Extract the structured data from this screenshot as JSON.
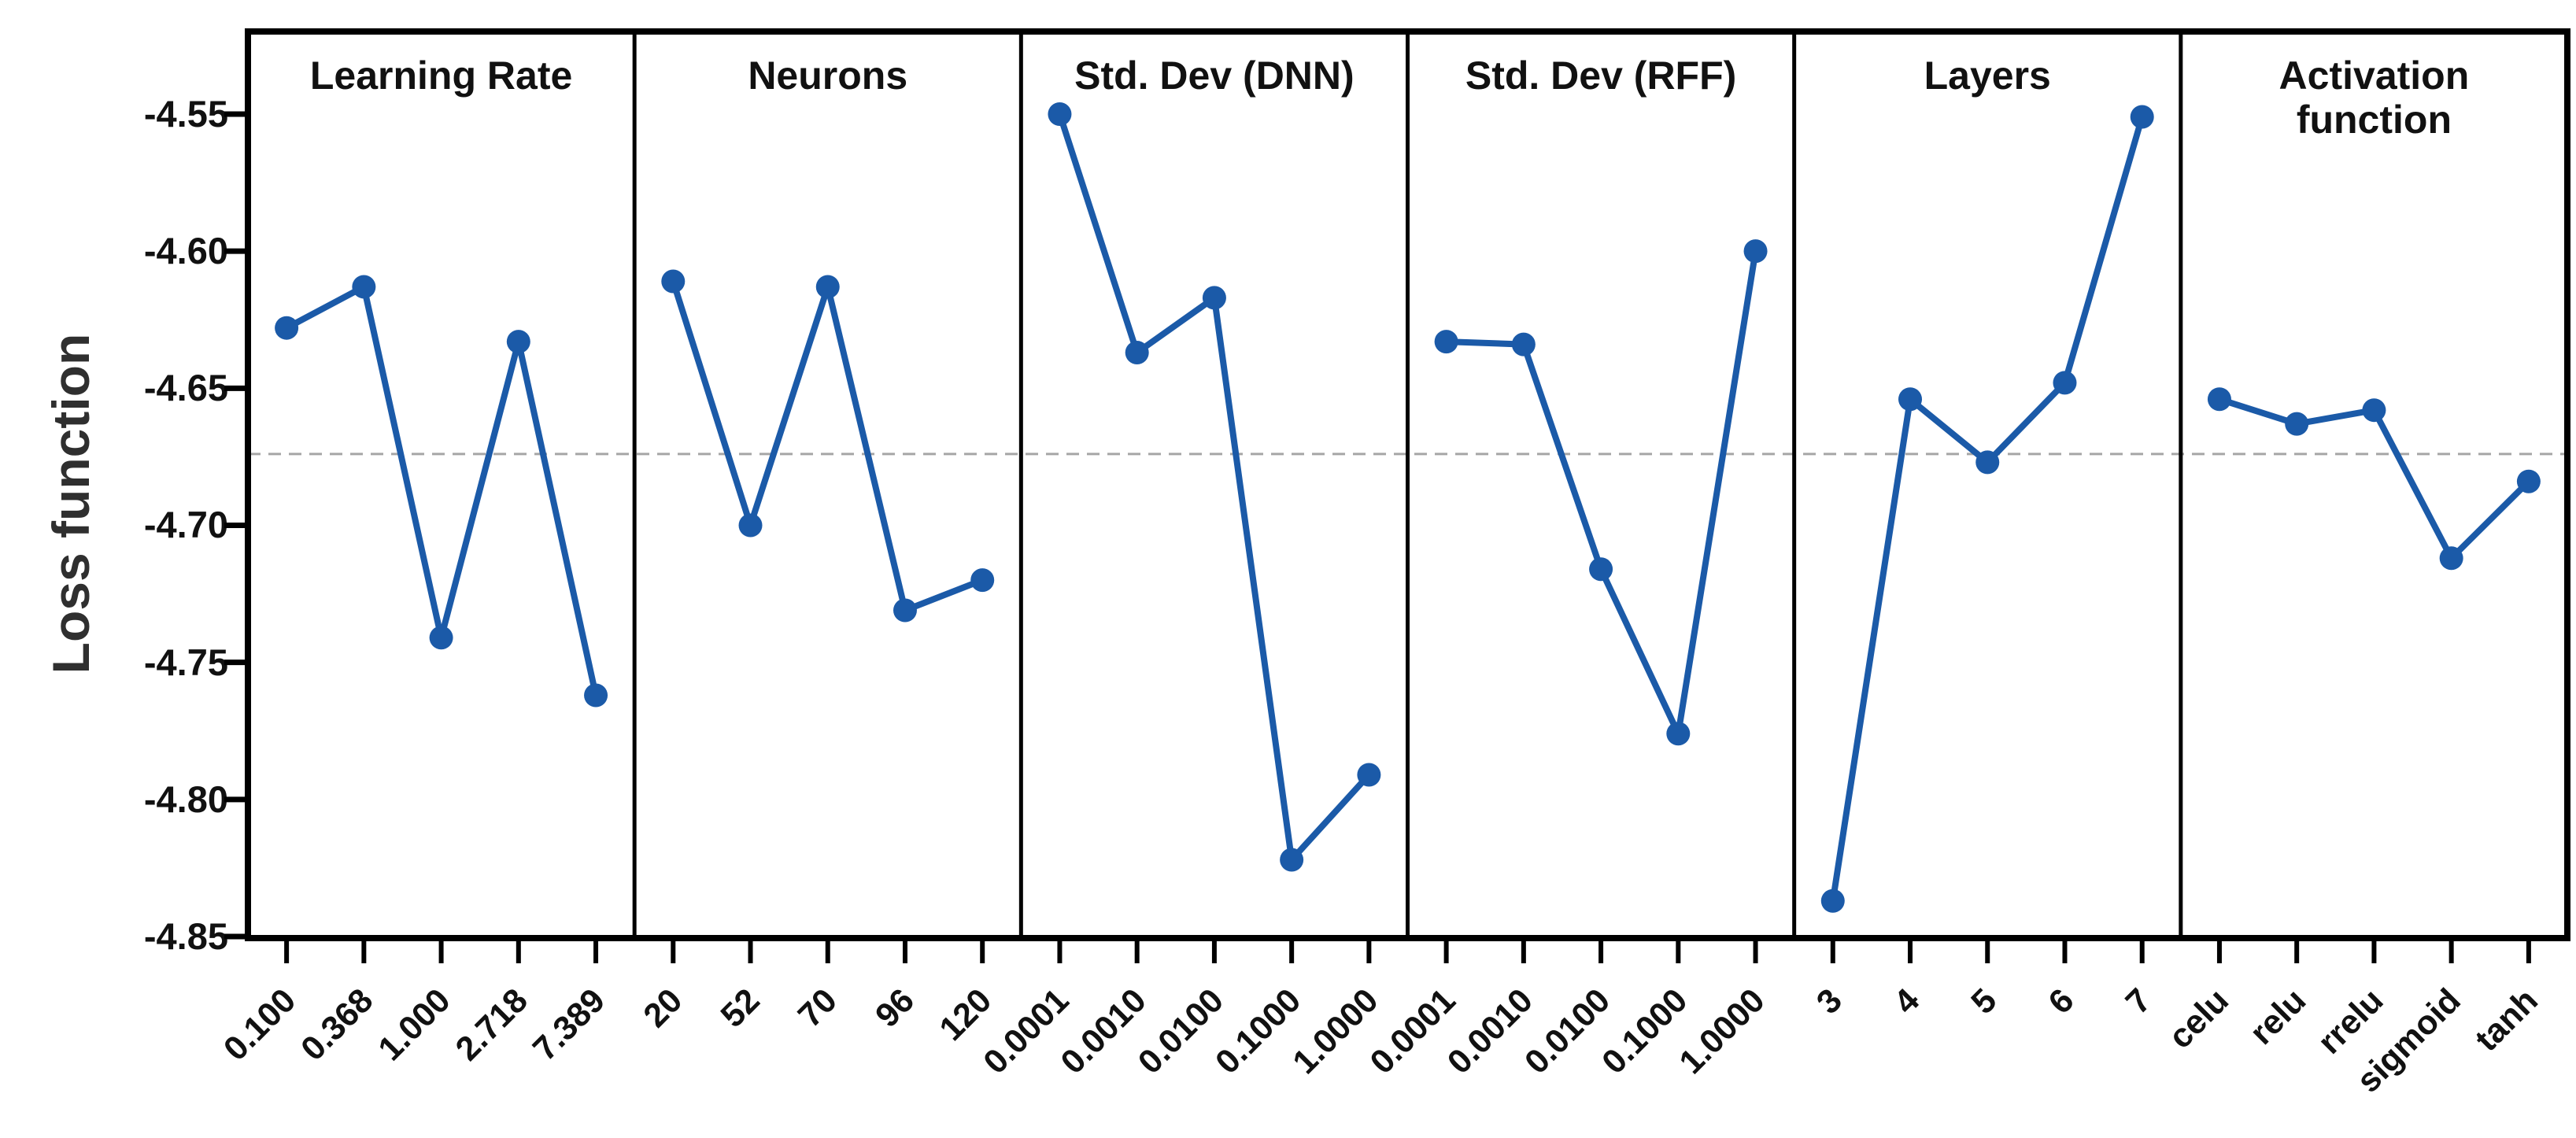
{
  "chart_data": {
    "type": "line",
    "title": "",
    "xlabel": "",
    "ylabel": "Loss function",
    "ylim": [
      -4.851,
      -4.52
    ],
    "grid": "off",
    "legend": "none",
    "marker": "filled-circle",
    "reference_line": {
      "value": -4.674,
      "style": "dashed",
      "color": "#a6a6a6"
    },
    "colors": {
      "series": "#1b5aa8",
      "axis": "#000000",
      "text": "#111111"
    },
    "ytick_values": [
      -4.55,
      -4.6,
      -4.65,
      -4.7,
      -4.75,
      -4.8,
      -4.85
    ],
    "ytick_labels": [
      "-4.55",
      "-4.60",
      "-4.65",
      "-4.70",
      "-4.75",
      "-4.80",
      "-4.85"
    ],
    "panels": [
      {
        "title": "Learning Rate",
        "categories": [
          "0.100",
          "0.368",
          "1.000",
          "2.718",
          "7.389"
        ],
        "values": [
          -4.628,
          -4.613,
          -4.741,
          -4.633,
          -4.762
        ]
      },
      {
        "title": "Neurons",
        "categories": [
          "20",
          "52",
          "70",
          "96",
          "120"
        ],
        "values": [
          -4.611,
          -4.7,
          -4.613,
          -4.731,
          -4.72
        ]
      },
      {
        "title": "Std. Dev (DNN)",
        "categories": [
          "0.0001",
          "0.0010",
          "0.0100",
          "0.1000",
          "1.0000"
        ],
        "values": [
          -4.55,
          -4.637,
          -4.617,
          -4.822,
          -4.791
        ]
      },
      {
        "title": "Std. Dev (RFF)",
        "categories": [
          "0.0001",
          "0.0010",
          "0.0100",
          "0.1000",
          "1.0000"
        ],
        "values": [
          -4.633,
          -4.634,
          -4.716,
          -4.776,
          -4.6
        ]
      },
      {
        "title": "Layers",
        "categories": [
          "3",
          "4",
          "5",
          "6",
          "7"
        ],
        "values": [
          -4.837,
          -4.654,
          -4.677,
          -4.648,
          -4.551
        ]
      },
      {
        "title": "Activation\nfunction",
        "categories": [
          "celu",
          "relu",
          "rrelu",
          "sigmoid",
          "tanh"
        ],
        "values": [
          -4.654,
          -4.663,
          -4.658,
          -4.712,
          -4.684
        ]
      }
    ]
  }
}
